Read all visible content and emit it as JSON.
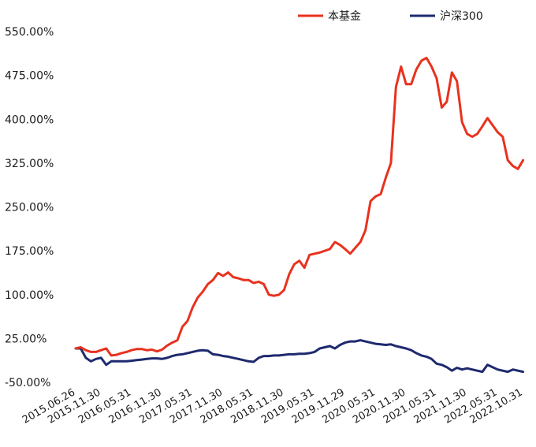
{
  "chart_data": {
    "type": "line",
    "title": "",
    "xlabel": "",
    "ylabel": "",
    "ylim": [
      -50,
      550
    ],
    "y_ticks": [
      "550.00%",
      "475.00%",
      "400.00%",
      "325.00%",
      "250.00%",
      "175.00%",
      "100.00%",
      "25.00%",
      "-50.00%"
    ],
    "y_tick_values": [
      550,
      475,
      400,
      325,
      250,
      175,
      100,
      25,
      -50
    ],
    "x_range": [
      0,
      89
    ],
    "x_ticks": [
      "2015.06.26",
      "2015.11.30",
      "2016.05.31",
      "2016.11.30",
      "2017.05.31",
      "2017.11.30",
      "2018.05.31",
      "2018.11.30",
      "2019.05.31",
      "2019.11.29",
      "2020.05.31",
      "2020.11.30",
      "2021.05.31",
      "2021.11.30",
      "2022.05.31",
      "2022.10.31"
    ],
    "x_tick_positions": [
      0,
      5,
      11,
      17,
      23,
      29,
      35,
      41,
      47,
      53,
      59,
      65,
      71,
      77,
      83,
      88
    ],
    "legend": "top-right",
    "grid": false,
    "series": [
      {
        "name": "本基金",
        "color": "#e8321e",
        "x": [
          0,
          1,
          2,
          3,
          4,
          5,
          6,
          7,
          8,
          9,
          10,
          11,
          12,
          13,
          14,
          15,
          16,
          17,
          18,
          19,
          20,
          21,
          22,
          23,
          24,
          25,
          26,
          27,
          28,
          29,
          30,
          31,
          32,
          33,
          34,
          35,
          36,
          37,
          38,
          39,
          40,
          41,
          42,
          43,
          44,
          45,
          46,
          47,
          48,
          49,
          50,
          51,
          52,
          53,
          54,
          55,
          56,
          57,
          58,
          59,
          60,
          61,
          62,
          63,
          64,
          65,
          66,
          67,
          68,
          69,
          70,
          71,
          72,
          73,
          74,
          75,
          76,
          77,
          78,
          79,
          80,
          81,
          82,
          83,
          84,
          85,
          86,
          87,
          88
        ],
        "values": [
          8,
          10,
          5,
          2,
          2,
          5,
          8,
          -4,
          -3,
          0,
          2,
          5,
          7,
          7,
          5,
          6,
          3,
          6,
          13,
          18,
          22,
          45,
          55,
          78,
          95,
          105,
          118,
          125,
          137,
          132,
          138,
          130,
          128,
          125,
          125,
          120,
          122,
          118,
          100,
          98,
          100,
          108,
          135,
          152,
          158,
          146,
          168,
          170,
          172,
          175,
          178,
          190,
          185,
          178,
          170,
          180,
          190,
          210,
          260,
          268,
          272,
          300,
          325,
          455,
          490,
          460,
          460,
          485,
          500,
          505,
          490,
          470,
          420,
          430,
          480,
          465,
          395,
          375,
          370,
          375,
          388,
          402,
          390,
          378,
          370,
          330,
          320,
          315,
          330
        ]
      },
      {
        "name": "沪深300",
        "color": "#1e2a6e",
        "x": [
          0,
          1,
          2,
          3,
          4,
          5,
          6,
          7,
          8,
          9,
          10,
          11,
          12,
          13,
          14,
          15,
          16,
          17,
          18,
          19,
          20,
          21,
          22,
          23,
          24,
          25,
          26,
          27,
          28,
          29,
          30,
          31,
          32,
          33,
          34,
          35,
          36,
          37,
          38,
          39,
          40,
          41,
          42,
          43,
          44,
          45,
          46,
          47,
          48,
          49,
          50,
          51,
          52,
          53,
          54,
          55,
          56,
          57,
          58,
          59,
          60,
          61,
          62,
          63,
          64,
          65,
          66,
          67,
          68,
          69,
          70,
          71,
          72,
          73,
          74,
          75,
          76,
          77,
          78,
          79,
          80,
          81,
          82,
          83,
          84,
          85,
          86,
          87,
          88
        ],
        "values": [
          8,
          8,
          -8,
          -14,
          -10,
          -8,
          -20,
          -14,
          -14,
          -14,
          -14,
          -13,
          -12,
          -11,
          -10,
          -9,
          -9,
          -10,
          -8,
          -5,
          -3,
          -2,
          0,
          2,
          4,
          5,
          4,
          -2,
          -3,
          -5,
          -6,
          -8,
          -10,
          -12,
          -14,
          -15,
          -8,
          -5,
          -5,
          -4,
          -4,
          -3,
          -2,
          -2,
          -1,
          -1,
          0,
          2,
          8,
          10,
          12,
          8,
          14,
          18,
          20,
          20,
          22,
          20,
          18,
          16,
          15,
          14,
          15,
          12,
          10,
          8,
          5,
          0,
          -4,
          -6,
          -10,
          -18,
          -20,
          -24,
          -30,
          -25,
          -28,
          -26,
          -28,
          -30,
          -32,
          -20,
          -24,
          -28,
          -30,
          -32,
          -28,
          -30,
          -32
        ]
      }
    ]
  },
  "legend": {
    "items": [
      {
        "label": "本基金",
        "color": "#e8321e"
      },
      {
        "label": "沪深300",
        "color": "#1e2a6e"
      }
    ]
  }
}
